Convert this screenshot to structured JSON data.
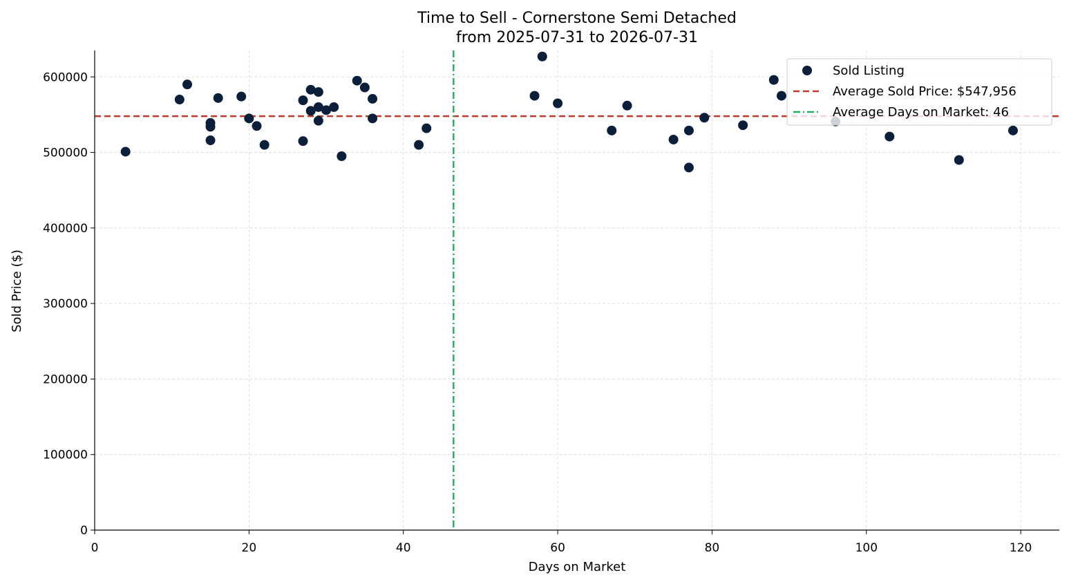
{
  "chart_data": {
    "type": "scatter",
    "title": "Time to Sell - Cornerstone Semi Detached",
    "subtitle": "from 2025-07-31 to 2026-07-31",
    "xlabel": "Days on Market",
    "ylabel": "Sold Price ($)",
    "xlim": [
      0,
      125
    ],
    "ylim": [
      0,
      635000
    ],
    "xticks": [
      "0",
      "20",
      "40",
      "60",
      "80",
      "100",
      "120"
    ],
    "yticks": [
      "0",
      "100000",
      "200000",
      "300000",
      "400000",
      "500000",
      "600000"
    ],
    "grid": true,
    "legend_position": "top-right",
    "series": [
      {
        "name": "Sold Listing",
        "points": [
          [
            4,
            501000
          ],
          [
            11,
            570000
          ],
          [
            12,
            590000
          ],
          [
            15,
            539000
          ],
          [
            15,
            534000
          ],
          [
            15,
            516000
          ],
          [
            16,
            572000
          ],
          [
            19,
            574000
          ],
          [
            20,
            545000
          ],
          [
            21,
            535000
          ],
          [
            22,
            510000
          ],
          [
            27,
            569000
          ],
          [
            27,
            515000
          ],
          [
            28,
            583000
          ],
          [
            28,
            555000
          ],
          [
            29,
            580000
          ],
          [
            29,
            560000
          ],
          [
            29,
            542000
          ],
          [
            30,
            556000
          ],
          [
            31,
            560000
          ],
          [
            32,
            495000
          ],
          [
            34,
            595000
          ],
          [
            35,
            586000
          ],
          [
            36,
            571000
          ],
          [
            36,
            545000
          ],
          [
            42,
            510000
          ],
          [
            43,
            532000
          ],
          [
            57,
            575000
          ],
          [
            58,
            627000
          ],
          [
            60,
            565000
          ],
          [
            67,
            529000
          ],
          [
            69,
            562000
          ],
          [
            75,
            517000
          ],
          [
            77,
            529000
          ],
          [
            77,
            480000
          ],
          [
            79,
            546000
          ],
          [
            84,
            536000
          ],
          [
            88,
            596000
          ],
          [
            89,
            575000
          ],
          [
            96,
            541000
          ],
          [
            103,
            521000
          ],
          [
            112,
            490000
          ],
          [
            119,
            529000
          ]
        ]
      }
    ],
    "reference_lines": [
      {
        "name": "Average Sold Price: $547,956",
        "orientation": "horizontal",
        "value": 547956
      },
      {
        "name": "Average Days on Market: 46",
        "orientation": "vertical",
        "value": 46.5
      }
    ]
  },
  "colors": {
    "points": "#0b1f3a",
    "avg_price_line": "#c0392b",
    "avg_days_line": "#27ae60",
    "grid": "#d9d9d9",
    "axis": "#000000"
  }
}
